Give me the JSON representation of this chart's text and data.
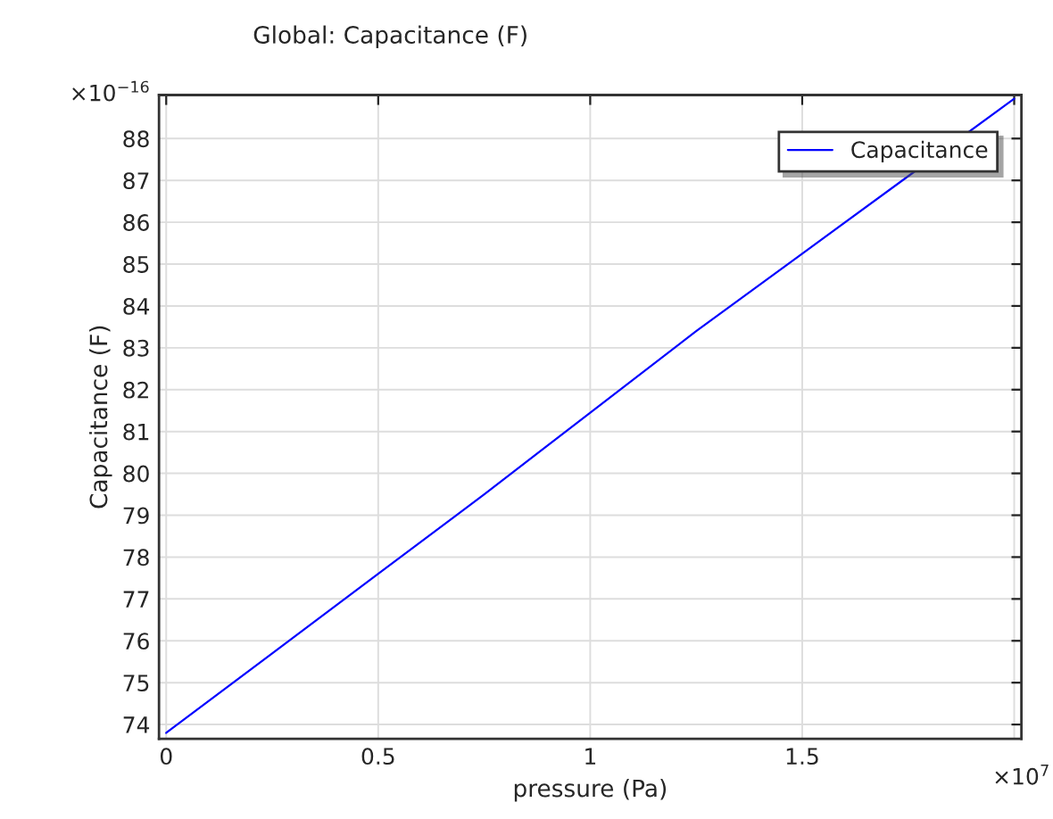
{
  "chart_data": {
    "type": "line",
    "title": "Global: Capacitance (F)",
    "xlabel": "pressure (Pa)",
    "ylabel": "Capacitance (F)",
    "x": [
      0,
      0.25,
      0.5,
      0.75,
      1,
      1.25,
      1.5,
      1.75,
      2
    ],
    "series": [
      {
        "name": "Capacitance",
        "color": "#0000ff",
        "values": [
          73.8,
          75.7,
          77.6,
          79.5,
          81.45,
          83.4,
          85.25,
          87.1,
          88.95
        ]
      }
    ],
    "xlim": [
      -0.017,
      2.017
    ],
    "xticks": [
      0,
      0.5,
      1,
      1.5,
      {
        "value": 2,
        "label": null
      }
    ],
    "ylim": [
      73.66,
      89.04
    ],
    "yticks": [
      74,
      75,
      76,
      77,
      78,
      79,
      80,
      81,
      82,
      83,
      84,
      85,
      86,
      87,
      88
    ],
    "annotations": [
      "×10$^{−16}$",
      "×10$^{7}$"
    ],
    "grid": true,
    "legend": "top right",
    "marker": "none",
    "line_style": "solid"
  }
}
